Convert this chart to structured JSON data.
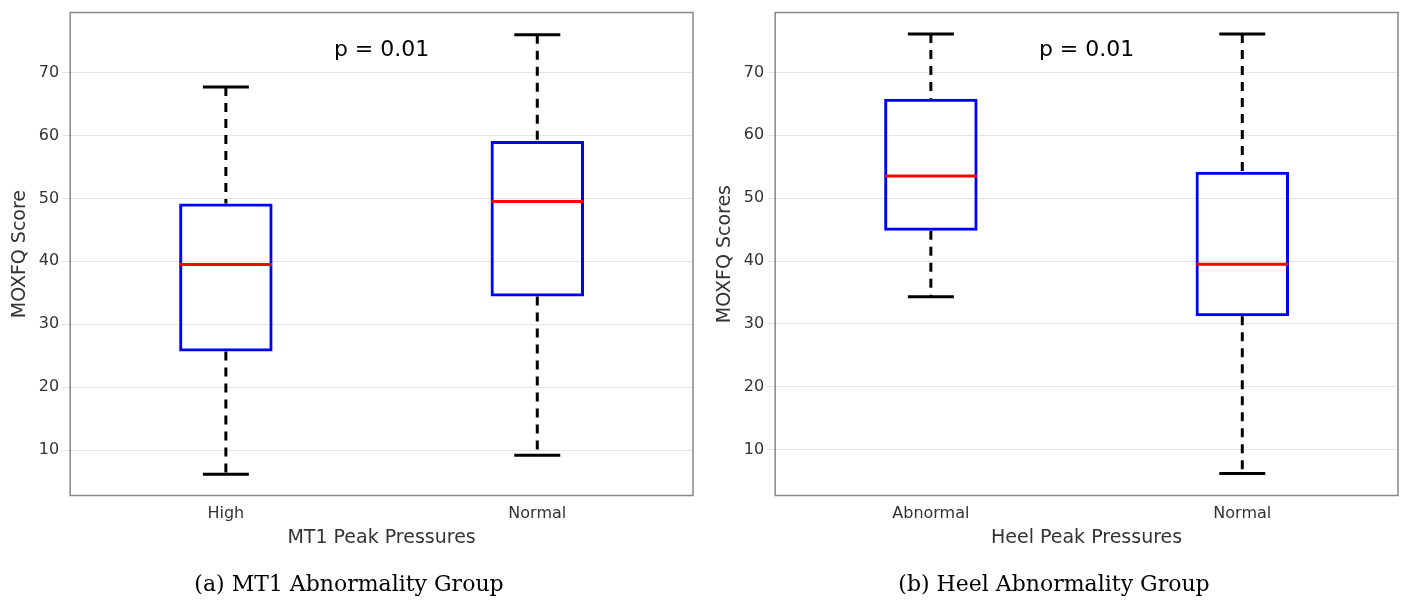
{
  "chart_data": [
    {
      "type": "box",
      "title": "(a) MT1 Abnormality Group",
      "xlabel": "MT1 Peak Pressures",
      "ylabel": "MOXFQ Score",
      "categories": [
        "High",
        "Normal"
      ],
      "color": "#0000ff",
      "boxes": [
        {
          "low": 6.2,
          "q1": 25.7,
          "median": 39.5,
          "q3": 49.2,
          "high": 67.7
        },
        {
          "low": 9.2,
          "q1": 34.4,
          "median": 49.5,
          "q3": 59.1,
          "high": 76.0
        }
      ],
      "ylim": [
        2.8,
        79.5
      ],
      "yticks": [
        10,
        20,
        30,
        40,
        50,
        60,
        70
      ],
      "grid": "y",
      "annotations": [
        "p = 0.01"
      ]
    },
    {
      "type": "box",
      "title": "(b) Heel Abnormality Group",
      "xlabel": "Heel Peak Pressures",
      "ylabel": "MOXFQ Scores",
      "categories": [
        "Abnormal",
        "Normal"
      ],
      "color": "#0000ff",
      "boxes": [
        {
          "low": 34.3,
          "q1": 44.8,
          "median": 53.5,
          "q3": 65.8,
          "high": 76.1
        },
        {
          "low": 6.2,
          "q1": 31.2,
          "median": 39.5,
          "q3": 54.2,
          "high": 76.1
        }
      ],
      "ylim": [
        2.7,
        79.5
      ],
      "yticks": [
        10,
        20,
        30,
        40,
        50,
        60,
        70
      ],
      "grid": "y",
      "annotations": [
        "p = 0.01"
      ]
    }
  ]
}
